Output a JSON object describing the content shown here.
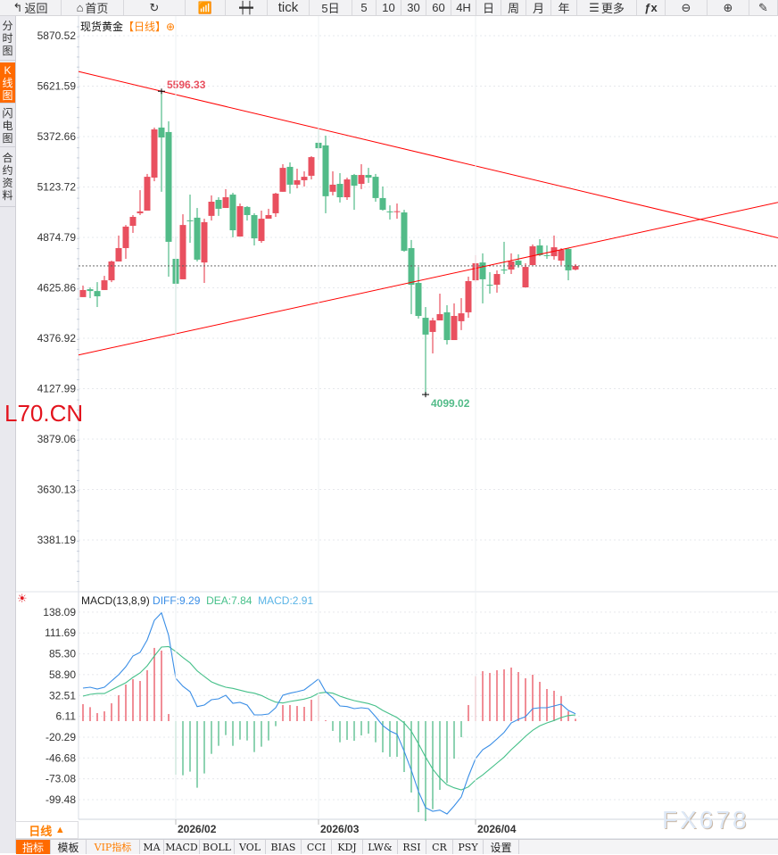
{
  "toolbar": {
    "items": [
      {
        "label": "返回",
        "icon": "back-arrow-icon"
      },
      {
        "label": "首页",
        "icon": "home-icon"
      },
      {
        "label": "",
        "icon": "refresh-icon"
      },
      {
        "label": "",
        "icon": "line-chart-icon"
      },
      {
        "label": "",
        "icon": "candlestick-icon"
      },
      {
        "label": "tick"
      },
      {
        "label": "5日"
      },
      {
        "label": "5"
      },
      {
        "label": "10"
      },
      {
        "label": "30"
      },
      {
        "label": "60"
      },
      {
        "label": "4H"
      },
      {
        "label": "日"
      },
      {
        "label": "周"
      },
      {
        "label": "月"
      },
      {
        "label": "年"
      },
      {
        "label": "更多",
        "icon": "menu-icon"
      },
      {
        "label": "",
        "icon": "fx-icon"
      },
      {
        "label": "",
        "icon": "zoom-out-icon"
      },
      {
        "label": "",
        "icon": "zoom-in-icon"
      },
      {
        "label": "",
        "icon": "pen-icon"
      }
    ]
  },
  "sidebar": {
    "items": [
      {
        "label": "分时图",
        "active": false
      },
      {
        "label": "K线图",
        "active": true
      },
      {
        "label": "闪电图",
        "active": false
      },
      {
        "label": "合约资料",
        "active": false
      }
    ]
  },
  "chart_header": {
    "instrument": "现货黄金",
    "timeframe": "【日线】",
    "icon": "plus-circle-icon"
  },
  "brand_text": "L70.CN",
  "watermark": "FX678",
  "colors": {
    "up": "#e9505f",
    "down": "#52bb88",
    "diff": "#3a8ee6",
    "dea": "#46c08a",
    "macd": "#5ab4e6",
    "trendline": "#ff0000",
    "last_price_line": "#1e7ae0",
    "accent": "#ff6a00"
  },
  "chart_data": [
    {
      "type": "candlestick",
      "title": "现货黄金",
      "y_ticks": [
        "5870.52",
        "5621.59",
        "5372.66",
        "5123.72",
        "4874.79",
        "4625.86",
        "4376.92",
        "4127.99",
        "3879.06",
        "3630.13",
        "3381.19"
      ],
      "ylim": [
        3381.19,
        5870.52
      ],
      "x_ticks": [
        {
          "label": "2026/02",
          "index": 13
        },
        {
          "label": "2026/03",
          "index": 33
        },
        {
          "label": "2026/04",
          "index": 55
        }
      ],
      "grid": true,
      "up_color": "red",
      "down_color": "green",
      "annotations": [
        {
          "label": "5596.33",
          "index": 11,
          "type": "high"
        },
        {
          "label": "4099.02",
          "index": 48,
          "type": "low"
        }
      ],
      "last_close": 4734,
      "trendlines": [
        {
          "p1": {
            "index": 11,
            "price": 5596.33
          },
          "p2": {
            "index": 33,
            "price": 5412
          }
        },
        {
          "p1": {
            "index": 13,
            "price": 4399
          },
          "p2": {
            "index": 68,
            "price": 4822
          }
        }
      ],
      "ohlc": [
        [
          4580,
          4637,
          4580,
          4615
        ],
        [
          4619,
          4628,
          4575,
          4610
        ],
        [
          4610,
          4654,
          4531,
          4584
        ],
        [
          4615,
          4685,
          4615,
          4663
        ],
        [
          4663,
          4760,
          4654,
          4756
        ],
        [
          4756,
          4884,
          4756,
          4822
        ],
        [
          4822,
          4936,
          4769,
          4928
        ],
        [
          4932,
          4985,
          4897,
          4976
        ],
        [
          4994,
          5108,
          4985,
          5003
        ],
        [
          5007,
          5188,
          5007,
          5174
        ],
        [
          5170,
          5417,
          5152,
          5408
        ],
        [
          5417,
          5596.33,
          5100,
          5368
        ],
        [
          5395,
          5448,
          4681,
          4853
        ],
        [
          4769,
          4879,
          4399,
          4646
        ],
        [
          4668,
          4989,
          4668,
          4936
        ],
        [
          4959,
          5086,
          4848,
          4957
        ],
        [
          4972,
          5020,
          4756,
          4765
        ],
        [
          4751,
          4967,
          4650,
          4950
        ],
        [
          4981,
          5082,
          4958,
          5051
        ],
        [
          5060,
          5073,
          4981,
          5016
        ],
        [
          5020,
          5113,
          5020,
          5073
        ],
        [
          5086,
          5095,
          4875,
          4910
        ],
        [
          4879,
          5042,
          4879,
          5029
        ],
        [
          5025,
          5029,
          4958,
          4985
        ],
        [
          4985,
          4994,
          4835,
          4870
        ],
        [
          4857,
          5007,
          4848,
          4967
        ],
        [
          4967,
          5016,
          4967,
          4985
        ],
        [
          4994,
          5095,
          4976,
          5091
        ],
        [
          5100,
          5236,
          5100,
          5218
        ],
        [
          5223,
          5245,
          5091,
          5135
        ],
        [
          5135,
          5214,
          5117,
          5157
        ],
        [
          5157,
          5201,
          5126,
          5174
        ],
        [
          5179,
          5276,
          5161,
          5271
        ],
        [
          5342,
          5412,
          5258,
          5315
        ],
        [
          5329,
          5377,
          4994,
          5078
        ],
        [
          5100,
          5201,
          5082,
          5135
        ],
        [
          5139,
          5192,
          5047,
          5073
        ],
        [
          5073,
          5170,
          5060,
          5161
        ],
        [
          5183,
          5188,
          5011,
          5130
        ],
        [
          5139,
          5236,
          5113,
          5183
        ],
        [
          5183,
          5218,
          5144,
          5170
        ],
        [
          5174,
          5188,
          5051,
          5069
        ],
        [
          5069,
          5126,
          5007,
          5011
        ],
        [
          5003,
          5033,
          4963,
          5001
        ],
        [
          5003,
          5042,
          4967,
          5004
        ],
        [
          4998,
          5011,
          4804,
          4809
        ],
        [
          4822,
          4862,
          4496,
          4641
        ],
        [
          4650,
          4729,
          4474,
          4487
        ],
        [
          4478,
          4531,
          4099.02,
          4395
        ],
        [
          4408,
          4478,
          4302,
          4465
        ],
        [
          4465,
          4597,
          4465,
          4496
        ],
        [
          4505,
          4540,
          4346,
          4368
        ],
        [
          4368,
          4549,
          4368,
          4487
        ],
        [
          4461,
          4575,
          4417,
          4500
        ],
        [
          4505,
          4681,
          4478,
          4659
        ],
        [
          4663,
          4787,
          4654,
          4747
        ],
        [
          4751,
          4796,
          4549,
          4668
        ],
        [
          4641,
          4703,
          4597,
          4640
        ],
        [
          4641,
          4712,
          4602,
          4694
        ],
        [
          4716,
          4853,
          4694,
          4715
        ],
        [
          4716,
          4796,
          4694,
          4756
        ],
        [
          4760,
          4791,
          4725,
          4738
        ],
        [
          4628,
          4747,
          4628,
          4729
        ],
        [
          4738,
          4840,
          4738,
          4831
        ],
        [
          4835,
          4866,
          4782,
          4787
        ],
        [
          4787,
          4835,
          4769,
          4786
        ],
        [
          4782,
          4884,
          4765,
          4826
        ],
        [
          4760,
          4822,
          4738,
          4813
        ],
        [
          4818,
          4822,
          4663,
          4712
        ],
        [
          4716,
          4743,
          4712,
          4734
        ]
      ]
    },
    {
      "type": "macd",
      "title": "MACD(13,8,9)",
      "legend": {
        "diff": "DIFF:9.29",
        "dea": "DEA:7.84",
        "macd": "MACD:2.91"
      },
      "y_ticks": [
        "138.09",
        "111.69",
        "85.30",
        "58.90",
        "32.51",
        "6.11",
        "-20.29",
        "-46.68",
        "-73.08",
        "-99.48"
      ],
      "diff": [
        41.8,
        43,
        40.7,
        43,
        50.9,
        58.8,
        69,
        82.6,
        87.1,
        102.9,
        127.8,
        137.2,
        108.6,
        54.3,
        44.1,
        37.3,
        18.4,
        20.4,
        27.1,
        28.3,
        32.8,
        22.6,
        23.8,
        20.4,
        7.9,
        7.9,
        9,
        17,
        32.8,
        35.4,
        37.3,
        39.6,
        46.4,
        53.5,
        37.3,
        29.5,
        19.2,
        18.4,
        15.8,
        17,
        15.8,
        5.7,
        -5.7,
        -12.4,
        -16.6,
        -38.1,
        -62.2,
        -89,
        -109.7,
        -114.2,
        -112.8,
        -117.6,
        -107.4,
        -96.1,
        -70.1,
        -47.5,
        -36.2,
        -30.5,
        -22.6,
        -14.3,
        -2.3,
        2.3,
        5.7,
        15.8,
        17,
        17,
        19.2,
        21.5,
        13.6,
        9.29
      ],
      "dea": [
        31.7,
        33.9,
        35,
        35,
        39.6,
        44.1,
        48.6,
        55.4,
        61.1,
        70.1,
        82.6,
        93.9,
        94.6,
        88.2,
        80.6,
        73.9,
        63.7,
        56.6,
        49.8,
        46,
        43,
        41.5,
        39.2,
        37,
        35.4,
        32.5,
        27.9,
        24.1,
        23,
        24.9,
        26.4,
        27.9,
        30.5,
        35.4,
        36.5,
        35.4,
        31.7,
        28.6,
        26,
        24.1,
        22.3,
        19.2,
        13.6,
        9,
        4.5,
        -2.3,
        -12.8,
        -28.6,
        -45.6,
        -60.7,
        -72,
        -80.6,
        -84.5,
        -87.1,
        -83.4,
        -74.6,
        -68.2,
        -60.7,
        -53.2,
        -45.6,
        -36.2,
        -27.9,
        -19.2,
        -11.7,
        -6,
        -2.3,
        0.8,
        4.5,
        7.1,
        7.84
      ],
      "macd": [
        21.5,
        17.7,
        10.2,
        12.4,
        22.6,
        32.8,
        46.4,
        53.2,
        50.9,
        64.5,
        92.8,
        89.4,
        9,
        -67.9,
        -68.6,
        -64,
        -84.4,
        -66.3,
        -41.5,
        -31.3,
        -17.7,
        -31.3,
        -23.4,
        -24.5,
        -39.2,
        -32.4,
        -24.5,
        -6.4,
        20.4,
        20.4,
        19.2,
        18.1,
        27.1,
        32.8,
        1.1,
        -12.4,
        -26.8,
        -23.8,
        -24.9,
        -18.1,
        -15.8,
        -26.8,
        -39.6,
        -45.2,
        -45.2,
        -64.5,
        -90.5,
        -115.4,
        -126.7,
        -111.6,
        -87.1,
        -78.4,
        -47.5,
        -20.4,
        20.4,
        56.9,
        63.3,
        61.1,
        64.5,
        65.6,
        67.9,
        62.2,
        54.3,
        58.8,
        49.8,
        40.7,
        38.5,
        31.7,
        12.4,
        2.91
      ],
      "icon": "sun-settings-icon"
    }
  ],
  "period_button": {
    "label": "日线",
    "icon": "triangle-up-icon"
  },
  "bottom_tabs": [
    {
      "label": "指标",
      "style": "active"
    },
    {
      "label": "模板",
      "style": "cn"
    },
    {
      "label": "VIP指标",
      "style": "vip"
    },
    {
      "label": "MA"
    },
    {
      "label": "MACD"
    },
    {
      "label": "BOLL"
    },
    {
      "label": "VOL"
    },
    {
      "label": "BIAS"
    },
    {
      "label": "CCI"
    },
    {
      "label": "KDJ"
    },
    {
      "label": "LW&"
    },
    {
      "label": "RSI"
    },
    {
      "label": "CR"
    },
    {
      "label": "PSY"
    },
    {
      "label": "设置",
      "style": "cn"
    }
  ]
}
